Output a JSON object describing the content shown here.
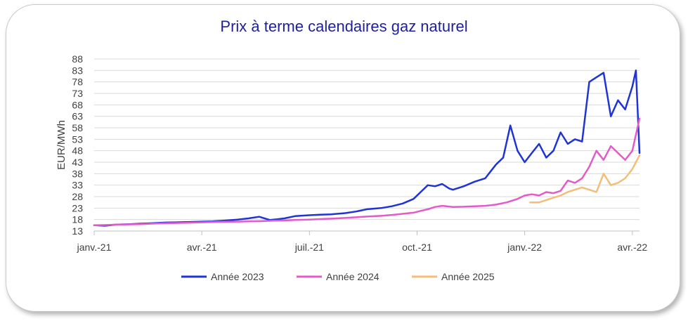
{
  "chart_data": {
    "type": "line",
    "title": "Prix à terme calendaires gaz naturel",
    "xlabel": "",
    "ylabel": "EUR/MWh",
    "yticks": [
      "13",
      "18",
      "23",
      "28",
      "33",
      "38",
      "43",
      "48",
      "53",
      "58",
      "63",
      "68",
      "73",
      "78",
      "83",
      "88"
    ],
    "ylim": [
      13,
      88
    ],
    "xticks": [
      "janv.-21",
      "avr.-21",
      "juil.-21",
      "oct.-21",
      "janv.-22",
      "avr.-22"
    ],
    "x_unit": "months since janv.-21",
    "xlim": [
      0,
      15.2
    ],
    "grid": true,
    "legend_position": "bottom",
    "series": [
      {
        "name": "Année 2023",
        "color": "#1f33d6",
        "x": [
          0,
          0.3,
          0.6,
          1,
          1.3,
          1.6,
          2,
          2.3,
          2.6,
          3,
          3.3,
          3.6,
          4,
          4.3,
          4.6,
          4.9,
          5.1,
          5.3,
          5.6,
          6,
          6.3,
          6.6,
          7,
          7.3,
          7.6,
          8,
          8.3,
          8.6,
          8.9,
          9.1,
          9.3,
          9.5,
          9.7,
          9.9,
          10,
          10.3,
          10.6,
          10.9,
          11,
          11.2,
          11.4,
          11.6,
          11.8,
          12,
          12.2,
          12.4,
          12.6,
          12.8,
          13,
          13.2,
          13.4,
          13.6,
          13.8,
          14,
          14.2,
          14.4,
          14.6,
          14.8,
          15,
          15.1,
          15.2
        ],
        "values": [
          15.5,
          15.3,
          15.8,
          16,
          16.2,
          16.4,
          16.7,
          16.8,
          16.9,
          17.1,
          17.2,
          17.5,
          18,
          18.5,
          19.2,
          17.8,
          18.1,
          18.5,
          19.5,
          19.9,
          20.1,
          20.3,
          20.8,
          21.5,
          22.5,
          23,
          23.8,
          25,
          27,
          30,
          33,
          32.5,
          33.5,
          31.5,
          31,
          32.5,
          34.5,
          36,
          38,
          42,
          45,
          59,
          48,
          43,
          47,
          51,
          45,
          48,
          56,
          51,
          53,
          52,
          78,
          80,
          82,
          63,
          70,
          66,
          76,
          83,
          47
        ]
      },
      {
        "name": "Année 2024",
        "color": "#e35bc8",
        "x": [
          0,
          0.3,
          0.6,
          1,
          1.3,
          1.6,
          2,
          2.3,
          2.6,
          3,
          3.3,
          3.6,
          4,
          4.3,
          4.6,
          5,
          5.3,
          5.6,
          6,
          6.3,
          6.6,
          7,
          7.3,
          7.6,
          8,
          8.3,
          8.6,
          8.9,
          9.1,
          9.3,
          9.5,
          9.7,
          10,
          10.3,
          10.6,
          10.9,
          11.2,
          11.5,
          11.8,
          12,
          12.2,
          12.4,
          12.6,
          12.8,
          13,
          13.2,
          13.4,
          13.6,
          13.8,
          14,
          14.2,
          14.4,
          14.6,
          14.8,
          15,
          15.1,
          15.2
        ],
        "values": [
          15.5,
          15.6,
          15.8,
          15.9,
          16,
          16.2,
          16.4,
          16.5,
          16.6,
          16.8,
          16.9,
          17,
          17.1,
          17.2,
          17.3,
          17.5,
          17.6,
          17.8,
          18,
          18.2,
          18.4,
          18.7,
          19,
          19.3,
          19.6,
          20,
          20.5,
          21,
          21.8,
          22.5,
          23.5,
          24,
          23.5,
          23.6,
          23.8,
          24,
          24.5,
          25.5,
          27,
          28.5,
          29,
          28.5,
          30,
          29.5,
          30.5,
          35,
          34,
          36,
          41,
          48,
          44,
          50,
          47,
          44,
          48,
          55,
          62
        ]
      },
      {
        "name": "Année 2025",
        "color": "#f4be7a",
        "x": [
          12.15,
          12.4,
          12.6,
          12.8,
          13,
          13.2,
          13.4,
          13.6,
          13.8,
          14,
          14.2,
          14.4,
          14.6,
          14.8,
          15,
          15.1,
          15.2
        ],
        "values": [
          25.5,
          25.5,
          26.5,
          27.5,
          28.5,
          30,
          31,
          32,
          31,
          30,
          38,
          33,
          34,
          36,
          40,
          43,
          46
        ]
      }
    ]
  }
}
